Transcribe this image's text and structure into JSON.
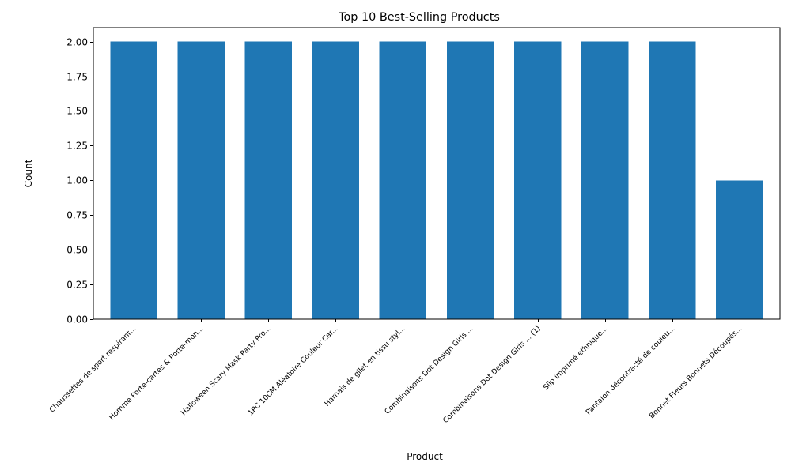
{
  "chart_data": {
    "type": "bar",
    "title": "Top 10 Best-Selling Products",
    "xlabel": "Product",
    "ylabel": "Count",
    "ylim": [
      0,
      2.1
    ],
    "yticks": [
      "0.00",
      "0.25",
      "0.50",
      "0.75",
      "1.00",
      "1.25",
      "1.50",
      "1.75",
      "2.00"
    ],
    "grid": false,
    "bar_color": "#1f77b4",
    "categories": [
      "Chaussettes de sport respirant...",
      "Homme Porte-cartes & Porte-mon...",
      "Halloween Scary Mask Party Pro...",
      "1PC 10CM Aléatoire Couleur Car...",
      "Harnais de gilet en tissu styl...",
      "Combinaisons Dot Design Girls ...",
      "Combinaisons Dot Design Girls ... (1)",
      "Slip imprimé ethnique...",
      "Pantalon décontracté de couleu...",
      "Bonnet Fleurs Bonnets Découpés..."
    ],
    "values": [
      2,
      2,
      2,
      2,
      2,
      2,
      2,
      2,
      2,
      1
    ]
  }
}
